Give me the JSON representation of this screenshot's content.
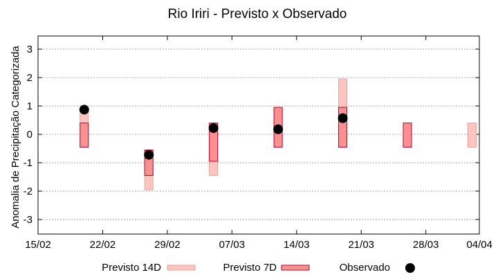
{
  "chart_data": {
    "type": "floating-bar",
    "title": "Rio Iriri - Previsto x Observado",
    "ylabel": "Anomalia de Precipitação Categorizada",
    "xlabel": "",
    "ylim": [
      -3.5,
      3.5
    ],
    "yticks": [
      3,
      2,
      1,
      0,
      -1,
      -2,
      -3
    ],
    "yticks_labels": [
      "3",
      "2",
      "1",
      "0",
      "-1",
      "-2",
      "-3"
    ],
    "xlim_days": [
      0,
      48
    ],
    "xticks": [
      {
        "day": 0,
        "label": "15/02"
      },
      {
        "day": 7,
        "label": "22/02"
      },
      {
        "day": 14,
        "label": "29/02"
      },
      {
        "day": 21,
        "label": "07/03"
      },
      {
        "day": 28,
        "label": "14/03"
      },
      {
        "day": 35,
        "label": "21/03"
      },
      {
        "day": 42,
        "label": "28/03"
      },
      {
        "day": 49,
        "label": "04/04"
      }
    ],
    "grid": true,
    "legend_position": "bottom",
    "series": [
      {
        "name": "Previsto 14D",
        "fill": "#fcc5c0",
        "stroke": "#f79d96",
        "ranges": [
          {
            "day": 5,
            "low": -0.45,
            "high": 0.9
          },
          {
            "day": 12,
            "low": -1.95,
            "high": -0.55
          },
          {
            "day": 19,
            "low": -1.45,
            "high": 0.4
          },
          {
            "day": 26,
            "low": -0.45,
            "high": 0.95
          },
          {
            "day": 33,
            "low": -0.45,
            "high": 1.95
          },
          {
            "day": 40,
            "low": -0.45,
            "high": 0.4
          },
          {
            "day": 47,
            "low": -0.45,
            "high": 0.4
          }
        ]
      },
      {
        "name": "Previsto 7D",
        "fill": "#fb9090",
        "stroke": "#c0002a",
        "ranges": [
          {
            "day": 5,
            "low": -0.45,
            "high": 0.4
          },
          {
            "day": 12,
            "low": -1.45,
            "high": -0.55
          },
          {
            "day": 19,
            "low": -0.95,
            "high": 0.4
          },
          {
            "day": 26,
            "low": -0.45,
            "high": 0.95
          },
          {
            "day": 33,
            "low": -0.45,
            "high": 0.95
          },
          {
            "day": 40,
            "low": -0.45,
            "high": 0.4
          }
        ]
      },
      {
        "name": "Observado",
        "color": "#000000",
        "points": [
          {
            "day": 5,
            "value": 0.87
          },
          {
            "day": 12,
            "value": -0.72
          },
          {
            "day": 19,
            "value": 0.22
          },
          {
            "day": 26,
            "value": 0.18
          },
          {
            "day": 33,
            "value": 0.57
          }
        ]
      }
    ]
  }
}
